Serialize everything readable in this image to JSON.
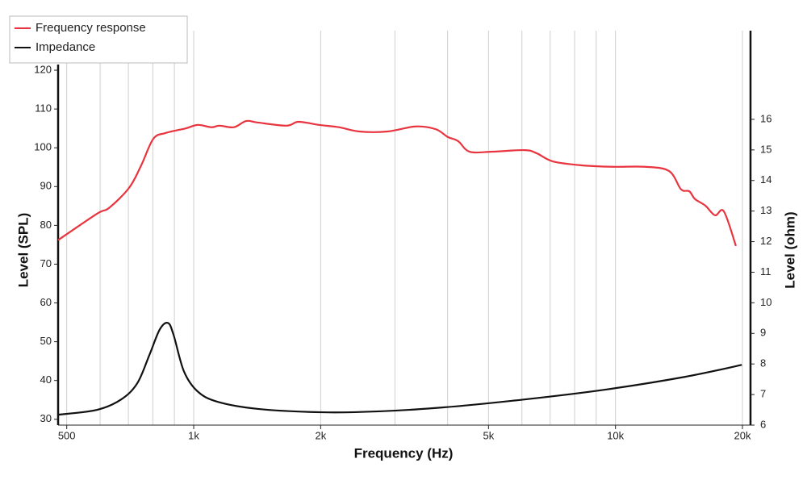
{
  "chart_data": {
    "type": "line",
    "xlabel": "Frequency (Hz)",
    "ylabel": "Level (SPL)",
    "y2label": "Level (ohm)",
    "xscale": "log",
    "grid": "x",
    "legend": "upper left",
    "xlim": [
      477,
      20900
    ],
    "xticks": [
      {
        "value": 500,
        "label": "500"
      },
      {
        "value": 1000,
        "label": "1k"
      },
      {
        "value": 2000,
        "label": "2k"
      },
      {
        "value": 5000,
        "label": "5k"
      },
      {
        "value": 10000,
        "label": "10k"
      },
      {
        "value": 20000,
        "label": "20k"
      }
    ],
    "xminor": [
      600,
      700,
      800,
      900,
      3000,
      4000,
      6000,
      7000,
      8000,
      9000
    ],
    "ylim": [
      28.5,
      130.2
    ],
    "yticks": [
      30,
      40,
      50,
      60,
      70,
      80,
      90,
      100,
      110,
      120
    ],
    "y2lim": [
      6,
      18.9
    ],
    "y2ticks": [
      6,
      7,
      8,
      9,
      10,
      11,
      12,
      13,
      14,
      15,
      16
    ],
    "series": [
      {
        "name": "Frequency response",
        "color": "#e8343e",
        "x": [
          477,
          590,
          630,
          703,
          751,
          802,
          857,
          957,
          1022,
          1102,
          1151,
          1246,
          1331,
          1421,
          1659,
          1772,
          1980,
          2210,
          2467,
          2878,
          3358,
          3747,
          4002,
          4238,
          4508,
          5101,
          6085,
          6502,
          7101,
          8281,
          9860,
          11750,
          13400,
          14300,
          14960,
          15430,
          16330,
          17220,
          18070,
          19300
        ],
        "values": [
          76.2,
          83,
          84.5,
          89.7,
          95.5,
          102.3,
          103.8,
          105,
          105.9,
          105.3,
          105.7,
          105.3,
          106.9,
          106.5,
          105.7,
          106.7,
          105.9,
          105.3,
          104.2,
          104.2,
          105.5,
          104.8,
          102.8,
          101.7,
          99.0,
          99.0,
          99.4,
          98.6,
          96.5,
          95.5,
          95.1,
          95.1,
          94.0,
          89.3,
          88.8,
          86.8,
          85.1,
          82.6,
          83.6,
          74.7
        ]
      },
      {
        "name": "Impedance",
        "color": "#111111",
        "axis": "y2",
        "x": [
          477,
          590,
          673,
          735,
          785,
          831,
          869,
          896,
          948,
          1022,
          1141,
          1421,
          2023,
          2751,
          3913,
          6085,
          9446,
          14630,
          19930
        ],
        "values": [
          6.34,
          6.5,
          6.84,
          7.37,
          8.29,
          9.13,
          9.34,
          8.95,
          7.76,
          7.1,
          6.76,
          6.53,
          6.42,
          6.45,
          6.58,
          6.84,
          7.16,
          7.58,
          7.97
        ]
      }
    ]
  }
}
